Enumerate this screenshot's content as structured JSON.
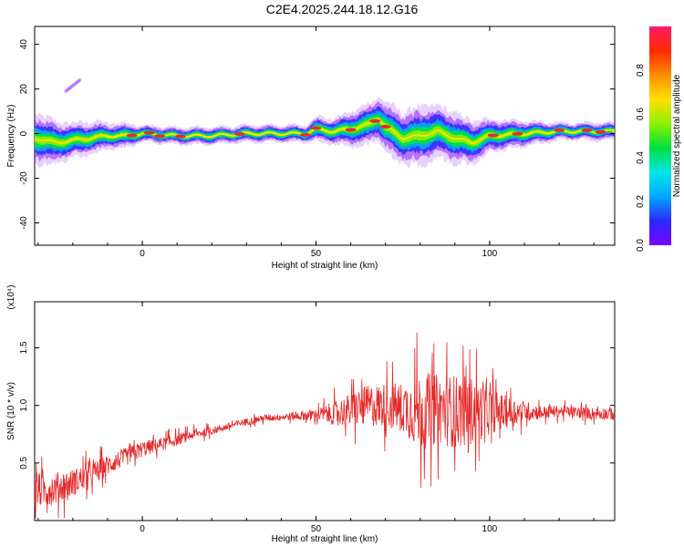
{
  "page_title": "C2E4.2025.244.18.12.G16",
  "colors": {
    "snr_line": "#e32a2a",
    "band_core": "#e03030",
    "colormap": [
      "#7a00ff",
      "#2a2aff",
      "#00a8ff",
      "#00e6e6",
      "#00e040",
      "#8cf000",
      "#ffe000",
      "#ff8c00",
      "#ff2a00",
      "#ff1a6a"
    ]
  },
  "chart_data": [
    {
      "type": "heatmap",
      "title": "C2E4.2025.244.18.12.G16",
      "xlabel": "Height of straight line (km)",
      "ylabel": "Frequency (Hz)",
      "xlim": [
        -31,
        136
      ],
      "ylim": [
        -50,
        48
      ],
      "xticks": [
        0,
        50,
        100
      ],
      "yticks": [
        -40,
        -20,
        0,
        20,
        40
      ],
      "colorbar": {
        "label": "Normalized spectral amplitude",
        "range": [
          0,
          1
        ],
        "ticks": [
          "0.0",
          "0.2",
          "0.4",
          "0.6",
          "0.8"
        ]
      },
      "band": {
        "description_values_are_frequency_hz_vs_height_km": true,
        "x": [
          -31,
          -25,
          -20,
          -15,
          -10,
          -5,
          0,
          10,
          20,
          30,
          40,
          47,
          50,
          55,
          60,
          65,
          68,
          70,
          75,
          80,
          85,
          90,
          95,
          100,
          110,
          120,
          130,
          136
        ],
        "center": [
          -2,
          -4,
          -3,
          -2,
          -1,
          -1,
          0,
          -1,
          -1,
          0,
          0,
          0,
          2,
          1,
          2,
          4,
          7,
          3,
          -2,
          -1,
          1,
          -2,
          -4,
          -1,
          0,
          1,
          1,
          1
        ],
        "halfwidth": [
          6,
          5,
          4,
          4,
          3,
          3,
          2,
          2,
          2,
          2,
          2,
          2,
          3,
          3,
          4,
          5,
          5,
          6,
          6,
          7,
          6,
          6,
          5,
          4,
          3,
          2,
          2,
          2
        ],
        "hot_spots": [
          -3,
          2,
          5,
          11,
          28,
          47,
          50,
          60,
          67,
          70,
          101,
          108,
          120,
          128,
          132
        ],
        "secondary_feature": {
          "x": [
            -22,
            -18
          ],
          "frequency": [
            19,
            24
          ]
        }
      }
    },
    {
      "type": "line",
      "xlabel": "Height of straight line (km)",
      "ylabel": "SNR (10 * v/v)",
      "multiplier": "(x10⁴)",
      "xlim": [
        -31,
        136
      ],
      "ylim": [
        0.0,
        1.9
      ],
      "xticks": [
        0,
        50,
        100
      ],
      "yticks": [
        "0.5",
        "1.0",
        "1.5"
      ],
      "series": [
        {
          "x": [
            -31,
            -25,
            -20,
            -15,
            -10,
            -5,
            0,
            5,
            10,
            15,
            20,
            25,
            30,
            35,
            40,
            45,
            50,
            55,
            60,
            65,
            70,
            75,
            80,
            85,
            90,
            95,
            100,
            105,
            110,
            115,
            120,
            125,
            130,
            136
          ],
          "y": [
            0.25,
            0.28,
            0.33,
            0.4,
            0.48,
            0.55,
            0.62,
            0.66,
            0.7,
            0.75,
            0.78,
            0.82,
            0.86,
            0.89,
            0.9,
            0.91,
            0.92,
            0.93,
            0.96,
            1.0,
            1.0,
            0.98,
            0.95,
            0.97,
            0.95,
            0.95,
            0.95,
            0.94,
            0.95,
            0.94,
            0.95,
            0.94,
            0.93,
            0.93
          ],
          "noise": [
            0.15,
            0.14,
            0.12,
            0.1,
            0.09,
            0.08,
            0.07,
            0.06,
            0.05,
            0.04,
            0.035,
            0.03,
            0.03,
            0.03,
            0.03,
            0.04,
            0.05,
            0.1,
            0.15,
            0.18,
            0.2,
            0.22,
            0.35,
            0.3,
            0.32,
            0.3,
            0.2,
            0.14,
            0.09,
            0.06,
            0.05,
            0.05,
            0.05,
            0.06
          ]
        }
      ]
    }
  ]
}
